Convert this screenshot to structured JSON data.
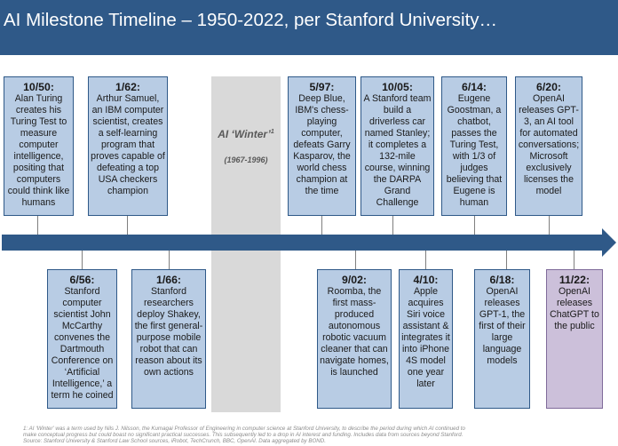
{
  "header": {
    "title": "AI Milestone Timeline – 1950-2022, per Stanford University…"
  },
  "winter": {
    "label": "AI ‘Winter’",
    "sup": "1",
    "years": "(1967-1996)"
  },
  "events_top": [
    {
      "date": "10/50:",
      "text": "Alan Turing creates his Turing Test to measure computer intelligence, positing that computers could think like humans"
    },
    {
      "date": "1/62:",
      "text": "Arthur Samuel, an IBM computer scientist, creates a self-learning program that proves capable of defeating a top USA checkers champion"
    },
    {
      "date": "5/97:",
      "text": "Deep Blue, IBM's chess-playing computer, defeats Garry Kasparov, the world chess champion at the time"
    },
    {
      "date": "10/05:",
      "text": "A Stanford team build a driverless car named Stanley; it completes a 132-mile course, winning the DARPA Grand Challenge"
    },
    {
      "date": "6/14:",
      "text": "Eugene Goostman, a chatbot, passes the Turing Test, with 1/3 of judges believing that Eugene is human"
    },
    {
      "date": "6/20:",
      "text": "OpenAI releases GPT-3, an AI tool for automated conversations; Microsoft exclusively licenses the model"
    }
  ],
  "events_bottom": [
    {
      "date": "6/56:",
      "text": "Stanford computer scientist John McCarthy convenes the Dartmouth Conference on ‘Artificial Intelligence,’ a term he coined"
    },
    {
      "date": "1/66:",
      "text": "Stanford researchers deploy Shakey, the first general-purpose mobile robot that can reason about its own actions"
    },
    {
      "date": "9/02:",
      "text": "Roomba, the first mass-produced autonomous robotic vacuum cleaner that can navigate homes, is launched"
    },
    {
      "date": "4/10:",
      "text": "Apple acquires Siri voice assistant & integrates it into iPhone 4S model one year later"
    },
    {
      "date": "6/18:",
      "text": "OpenAI releases GPT-1, the first of their large language models"
    },
    {
      "date": "11/22:",
      "text": "OpenAI releases ChatGPT to the public"
    }
  ],
  "footnote": {
    "line1": "1: AI ‘Winter’ was a term used by Nils J. Nilsson, the Kumagai Professor of Engineering in computer science at Stanford University, to describe the period during which AI continued to",
    "line2": "make conceptual progress but could boast no significant practical successes. This subsequently led to a drop in AI interest and funding. Includes data from sources beyond Stanford.",
    "line3": "Source: Stanford University & Stanford Law School sources, iRobot, TechCrunch, BBC, OpenAI. Data aggregated by BOND."
  },
  "colors": {
    "header": "#2f5988",
    "box": "#b8cce4",
    "box_highlight": "#ccc0da",
    "arrow": "#2f5988",
    "winter_band": "#d9d9d9"
  }
}
